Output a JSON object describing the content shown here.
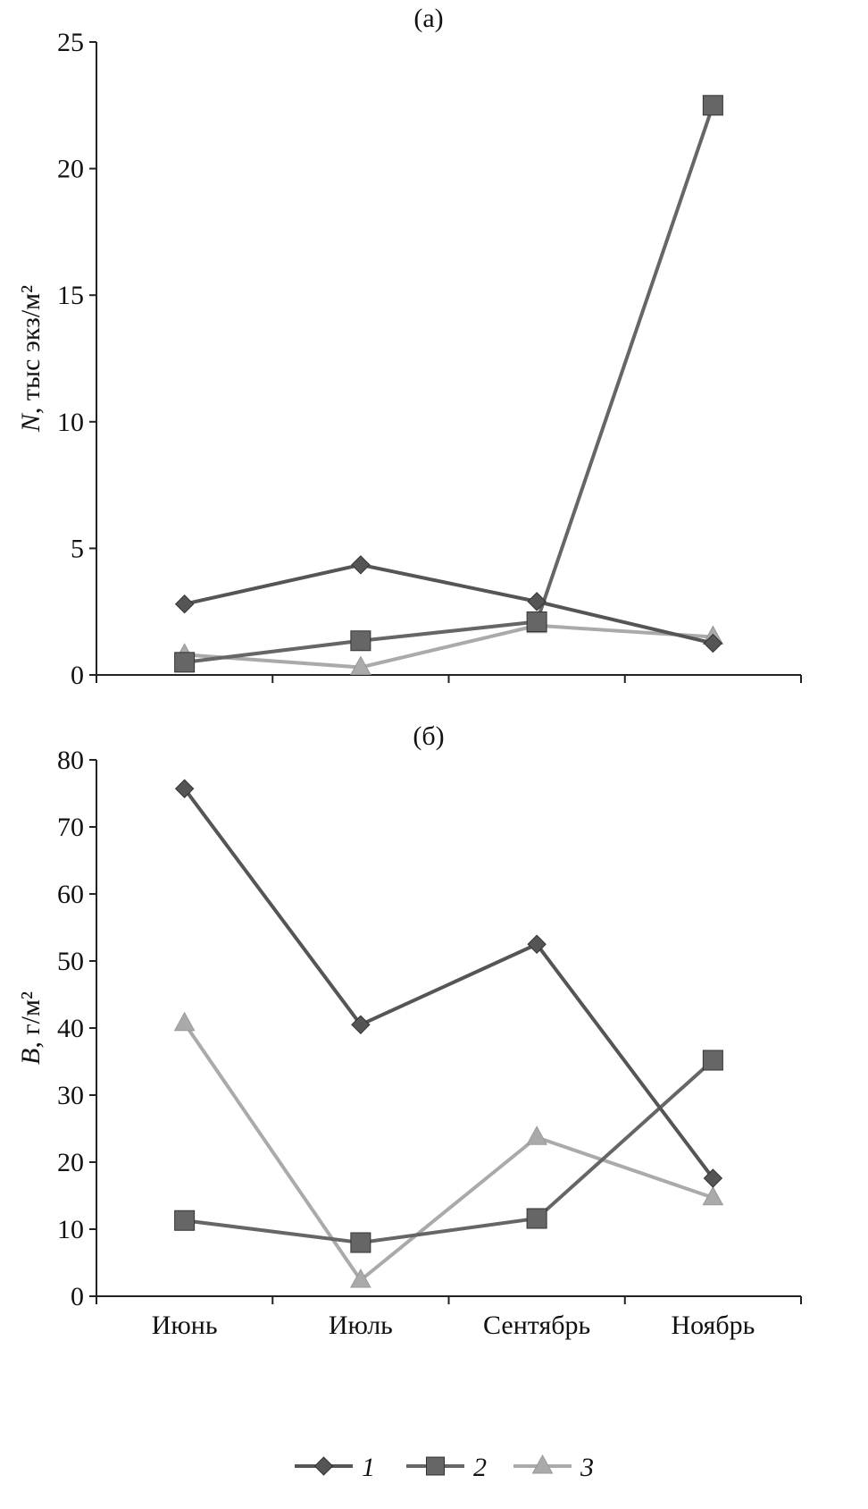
{
  "chart_data": [
    {
      "type": "line",
      "title": "(а)",
      "ylabel_var": "N",
      "ylabel_unit": ", тыс экз/м²",
      "ylim": [
        0,
        25
      ],
      "yticks": [
        0,
        5,
        10,
        15,
        20,
        25
      ],
      "categories": [
        "Июнь",
        "Июль",
        "Сентябрь",
        "Ноябрь"
      ],
      "series": [
        {
          "name": "1",
          "marker": "diamond",
          "color": "#555555",
          "values": [
            2.8,
            4.35,
            2.9,
            1.25
          ]
        },
        {
          "name": "2",
          "marker": "square",
          "color": "#666666",
          "values": [
            0.5,
            1.35,
            2.1,
            22.5
          ]
        },
        {
          "name": "3",
          "marker": "triangle",
          "color": "#aaaaaa",
          "values": [
            0.8,
            0.3,
            1.95,
            1.5
          ]
        }
      ]
    },
    {
      "type": "line",
      "title": "(б)",
      "ylabel_var": "B",
      "ylabel_unit": ", г/м²",
      "ylim": [
        0,
        80
      ],
      "yticks": [
        0,
        10,
        20,
        30,
        40,
        50,
        60,
        70,
        80
      ],
      "categories": [
        "Июнь",
        "Июль",
        "Сентябрь",
        "Ноябрь"
      ],
      "series": [
        {
          "name": "1",
          "marker": "diamond",
          "color": "#555555",
          "values": [
            75.7,
            40.5,
            52.5,
            17.6
          ]
        },
        {
          "name": "2",
          "marker": "square",
          "color": "#666666",
          "values": [
            11.3,
            8.0,
            11.6,
            35.2
          ]
        },
        {
          "name": "3",
          "marker": "triangle",
          "color": "#aaaaaa",
          "values": [
            40.7,
            2.4,
            23.7,
            14.7
          ]
        }
      ]
    }
  ],
  "legend": {
    "placement": "bottom",
    "items": [
      "1",
      "2",
      "3"
    ]
  }
}
